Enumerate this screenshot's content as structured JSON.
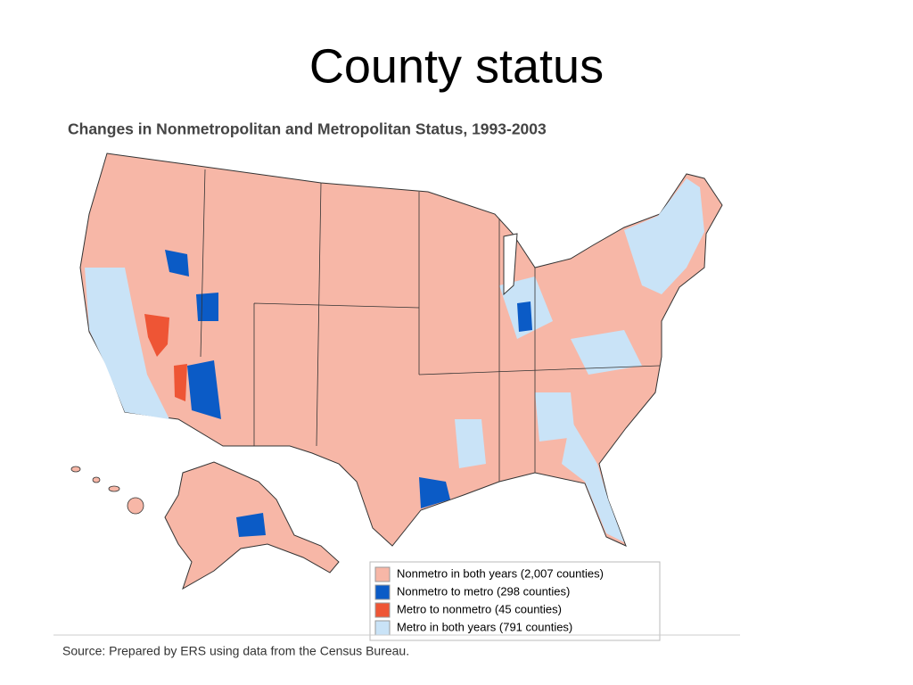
{
  "header": {
    "title": "County status"
  },
  "map": {
    "subtitle": "Changes in Nonmetropolitan and Metropolitan Status, 1993-2003",
    "legend": [
      {
        "label": "Nonmetro in both years (2,007 counties)",
        "color": "#f7b7a7"
      },
      {
        "label": "Nonmetro to metro (298 counties)",
        "color": "#0b5bc6"
      },
      {
        "label": "Metro to nonmetro (45 counties)",
        "color": "#ee5535"
      },
      {
        "label": "Metro in both years (791 counties)",
        "color": "#c9e3f7"
      }
    ],
    "source": "Source: Prepared by ERS using data from the Census Bureau."
  }
}
